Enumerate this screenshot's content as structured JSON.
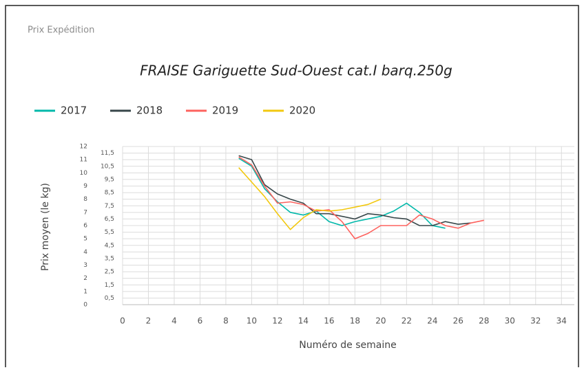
{
  "header": "Prix Expédition",
  "chart_data": {
    "type": "line",
    "title": "FRAISE Gariguette Sud-Ouest cat.I barq.250g",
    "xlabel": "Numéro de semaine",
    "ylabel": "Prix moyen  (le kg)",
    "x": [
      9,
      10,
      11,
      12,
      13,
      14,
      15,
      16,
      17,
      18,
      19,
      20,
      21,
      22,
      23,
      24,
      25,
      26,
      27,
      28
    ],
    "series": [
      {
        "name": "2017",
        "color": "#01b8aa",
        "values": [
          11.1,
          10.5,
          8.8,
          7.8,
          7.0,
          6.8,
          7.1,
          6.3,
          6.0,
          6.3,
          6.5,
          6.7,
          7.1,
          7.7,
          7.0,
          6.0,
          5.8,
          null,
          null,
          null
        ]
      },
      {
        "name": "2018",
        "color": "#374649",
        "values": [
          11.3,
          11.0,
          9.1,
          8.4,
          8.0,
          7.7,
          6.9,
          6.9,
          6.7,
          6.5,
          6.9,
          6.8,
          6.6,
          6.5,
          6.0,
          6.0,
          6.3,
          6.1,
          6.2,
          null
        ]
      },
      {
        "name": "2019",
        "color": "#fd625e",
        "values": [
          11.2,
          10.6,
          9.0,
          7.7,
          7.8,
          7.6,
          7.1,
          7.2,
          6.3,
          5.0,
          5.4,
          6.0,
          6.0,
          6.0,
          6.8,
          6.5,
          6.0,
          5.8,
          6.2,
          6.4
        ]
      },
      {
        "name": "2020",
        "color": "#f2c80f",
        "values": [
          10.4,
          9.3,
          8.2,
          6.9,
          5.7,
          6.6,
          7.2,
          7.1,
          7.2,
          7.4,
          7.6,
          8.0,
          null,
          null,
          null,
          null,
          null,
          null,
          null,
          null
        ]
      }
    ],
    "xlim": [
      0,
      35
    ],
    "xticks": [
      0,
      2,
      4,
      6,
      8,
      10,
      12,
      14,
      16,
      18,
      20,
      22,
      24,
      26,
      28,
      30,
      32,
      34
    ],
    "ylim": [
      0,
      12
    ],
    "yticks": [
      0,
      {
        "value": 0.5,
        "label": "0,5"
      },
      1,
      {
        "value": 1.5,
        "label": "1,5"
      },
      2,
      {
        "value": 2.5,
        "label": "2,5"
      },
      3,
      {
        "value": 3.5,
        "label": "3,5"
      },
      4,
      {
        "value": 4.5,
        "label": "4,5"
      },
      5,
      {
        "value": 5.5,
        "label": "5,5"
      },
      6,
      {
        "value": 6.5,
        "label": "6,5"
      },
      7,
      {
        "value": 7.5,
        "label": "7,5"
      },
      8,
      {
        "value": 8.5,
        "label": "8,5"
      },
      9,
      {
        "value": 9.5,
        "label": "9,5"
      },
      10,
      {
        "value": 10.5,
        "label": "10,5"
      },
      11,
      {
        "value": 11.5,
        "label": "11,5"
      },
      12
    ],
    "grid": true,
    "legend": "top-left"
  }
}
